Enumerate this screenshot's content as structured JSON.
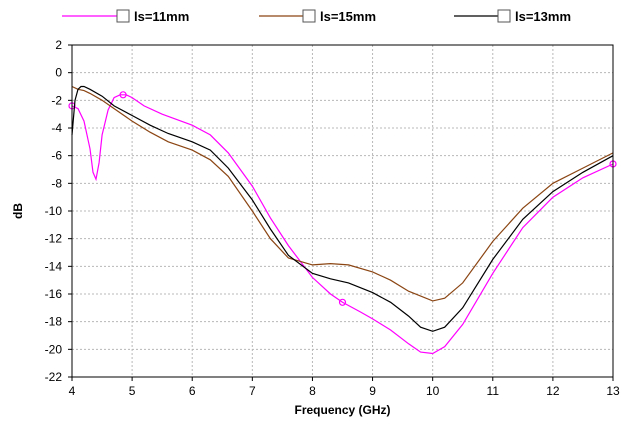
{
  "chart_data": {
    "type": "line",
    "title": "",
    "xlabel": "Frequency (GHz)",
    "ylabel": "dB",
    "xlim": [
      4,
      13
    ],
    "ylim": [
      -22,
      2
    ],
    "xticks": [
      4,
      5,
      6,
      7,
      8,
      9,
      10,
      11,
      12,
      13
    ],
    "yticks": [
      2,
      0,
      -2,
      -4,
      -6,
      -8,
      -10,
      -12,
      -14,
      -16,
      -18,
      -20,
      -22
    ],
    "grid": true,
    "legend_position": "top",
    "series": [
      {
        "name": "ls=11mm",
        "color": "#ff00ff",
        "marker": "circle",
        "marker_x": [
          4.0,
          4.85,
          8.5,
          13.0
        ],
        "x": [
          4.0,
          4.1,
          4.2,
          4.3,
          4.35,
          4.4,
          4.45,
          4.5,
          4.6,
          4.7,
          4.8,
          4.9,
          5.0,
          5.2,
          5.5,
          6.0,
          6.3,
          6.6,
          7.0,
          7.3,
          7.6,
          8.0,
          8.3,
          8.5,
          8.8,
          9.0,
          9.3,
          9.6,
          9.8,
          10.0,
          10.2,
          10.5,
          11.0,
          11.5,
          12.0,
          12.5,
          13.0
        ],
        "y": [
          -2.4,
          -2.6,
          -3.5,
          -5.5,
          -7.2,
          -7.7,
          -6.5,
          -4.5,
          -2.7,
          -1.8,
          -1.6,
          -1.6,
          -1.8,
          -2.4,
          -3.0,
          -3.8,
          -4.5,
          -5.8,
          -8.2,
          -10.5,
          -12.5,
          -14.8,
          -16.0,
          -16.6,
          -17.3,
          -17.8,
          -18.6,
          -19.6,
          -20.2,
          -20.3,
          -19.8,
          -18.2,
          -14.5,
          -11.2,
          -9.0,
          -7.6,
          -6.6
        ]
      },
      {
        "name": "ls=15mm",
        "color": "#8b4513",
        "x": [
          4.0,
          4.1,
          4.2,
          4.3,
          4.5,
          4.7,
          5.0,
          5.3,
          5.6,
          6.0,
          6.3,
          6.6,
          7.0,
          7.3,
          7.6,
          8.0,
          8.3,
          8.6,
          9.0,
          9.3,
          9.6,
          10.0,
          10.2,
          10.5,
          11.0,
          11.5,
          12.0,
          12.5,
          13.0
        ],
        "y": [
          -1.0,
          -1.2,
          -1.3,
          -1.5,
          -2.0,
          -2.6,
          -3.5,
          -4.3,
          -5.0,
          -5.6,
          -6.3,
          -7.5,
          -10.0,
          -12.0,
          -13.4,
          -13.9,
          -13.8,
          -13.9,
          -14.4,
          -15.0,
          -15.8,
          -16.5,
          -16.3,
          -15.2,
          -12.2,
          -9.8,
          -8.0,
          -6.9,
          -5.8
        ]
      },
      {
        "name": "ls=13mm",
        "color": "#000000",
        "x": [
          4.0,
          4.05,
          4.1,
          4.15,
          4.2,
          4.3,
          4.5,
          4.7,
          5.0,
          5.3,
          5.6,
          6.0,
          6.3,
          6.6,
          7.0,
          7.3,
          7.6,
          8.0,
          8.3,
          8.6,
          9.0,
          9.3,
          9.6,
          9.8,
          10.0,
          10.2,
          10.5,
          11.0,
          11.5,
          12.0,
          12.5,
          13.0
        ],
        "y": [
          -4.5,
          -2.0,
          -1.2,
          -1.0,
          -1.0,
          -1.2,
          -1.7,
          -2.4,
          -3.1,
          -3.8,
          -4.4,
          -5.0,
          -5.6,
          -6.9,
          -9.2,
          -11.3,
          -13.2,
          -14.5,
          -14.9,
          -15.2,
          -15.9,
          -16.6,
          -17.6,
          -18.4,
          -18.7,
          -18.4,
          -17.0,
          -13.5,
          -10.6,
          -8.6,
          -7.2,
          -6.0
        ]
      }
    ]
  }
}
